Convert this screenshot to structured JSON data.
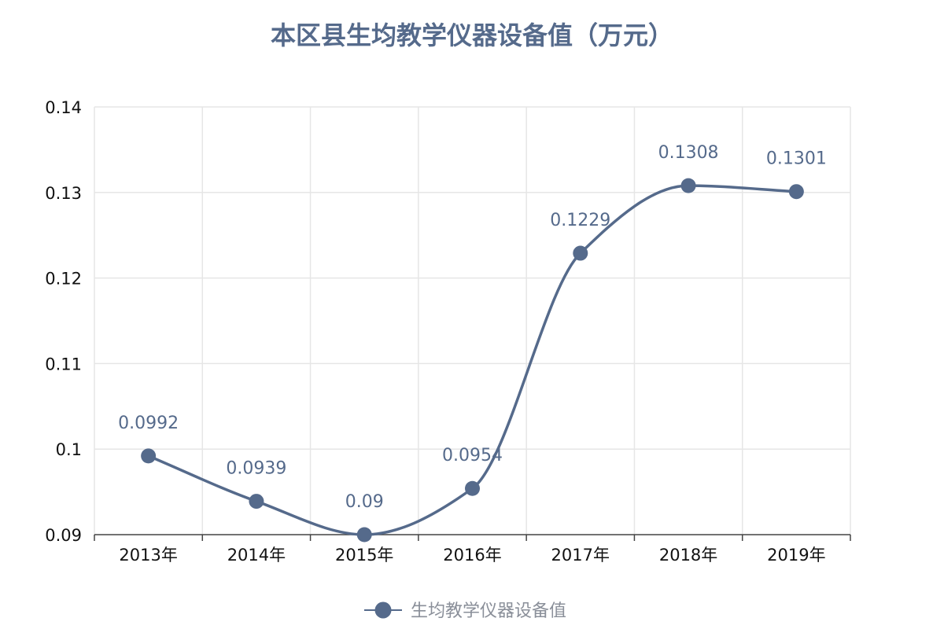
{
  "chart_data": {
    "type": "line",
    "title": "本区县生均教学仪器设备值（万元）",
    "categories": [
      "2013年",
      "2014年",
      "2015年",
      "2016年",
      "2017年",
      "2018年",
      "2019年"
    ],
    "series": [
      {
        "name": "生均教学仪器设备值",
        "values": [
          0.0992,
          0.0939,
          0.09,
          0.0954,
          0.1229,
          0.1308,
          0.1301
        ],
        "data_labels": [
          "0.0992",
          "0.0939",
          "0.09",
          "0.0954",
          "0.1229",
          "0.1308",
          "0.1301"
        ],
        "color": "#556a8b",
        "smooth": true
      }
    ],
    "ylim": [
      0.09,
      0.14
    ],
    "yticks": [
      0.09,
      0.1,
      0.11,
      0.12,
      0.13,
      0.14
    ],
    "ytick_labels": [
      "0.09",
      "0.1",
      "0.11",
      "0.12",
      "0.13",
      "0.14"
    ],
    "grid": true,
    "legend_position": "bottom-center",
    "colors": {
      "series": "#556a8b",
      "grid": "#e6e6e6",
      "axis": "#444444",
      "legend_text": "#8a8f99"
    }
  }
}
